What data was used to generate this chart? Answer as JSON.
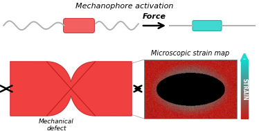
{
  "title": "Mechanophore activation",
  "bg_color": "#ffffff",
  "wavy_color": "#b0b0b0",
  "mech_red_fc": "#f26060",
  "mech_red_ec": "#d04040",
  "mech_cyan_fc": "#40d8d0",
  "mech_cyan_ec": "#20b0a8",
  "force_label": "Force",
  "bow_color": "#f04040",
  "bow_dark": "#c83030",
  "defect_label": "Mechanical\ndefect",
  "microscopic_label": "Microscopic strain map",
  "strain_label": "STRAIN",
  "strain_top_color": "#20d8d0",
  "strain_bot_color": "#cc2222"
}
